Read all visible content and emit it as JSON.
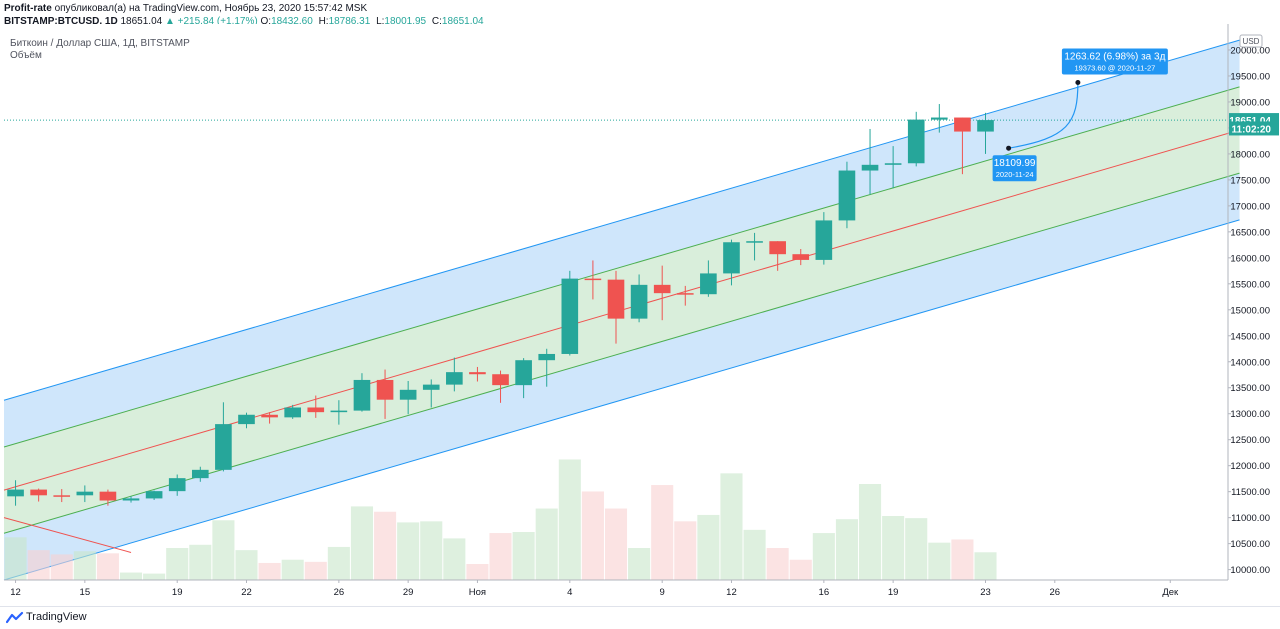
{
  "header": {
    "publisher": "Profit-rate",
    "published_text": "опубликовал(а) на TradingView.com, Ноябрь 23, 2020 15:57:42 MSK",
    "symbol": "BITSTAMP:BTCUSD, 1D",
    "last_price": "18651.04",
    "change": "▲ +215.84 (+1.17%)",
    "ohlc": [
      {
        "label": "O:",
        "value": "18432.60"
      },
      {
        "label": "H:",
        "value": "18786.31"
      },
      {
        "label": "L:",
        "value": "18001.95"
      },
      {
        "label": "C:",
        "value": "18651.04"
      }
    ]
  },
  "legend": {
    "series_title": "Биткоин / Доллар США, 1Д, BITSTAMP",
    "volume_label": "Объём"
  },
  "footer": {
    "brand": "TradingView"
  },
  "colors": {
    "up": "#26a69a",
    "down": "#ef5350",
    "channel_outer_fill": "#cfe6fb",
    "channel_inner_fill": "#d9eedb",
    "channel_outer_line": "#2196f3",
    "channel_inner_line": "#4caf50",
    "median_line": "#ef5350",
    "badge": "#2196f3"
  },
  "chart_data": {
    "type": "candlestick",
    "currency": "USD",
    "y_range": [
      9800,
      20500
    ],
    "y_ticks": [
      10000,
      10500,
      11000,
      11500,
      12000,
      12500,
      13000,
      13500,
      14000,
      14500,
      15000,
      15500,
      16000,
      16500,
      17000,
      17500,
      18000,
      18500,
      19000,
      19500,
      20000
    ],
    "x_range": [
      "2020-10-12",
      "2020-12-04"
    ],
    "x_ticks": [
      {
        "date": "2020-10-12",
        "label": "12"
      },
      {
        "date": "2020-10-15",
        "label": "15"
      },
      {
        "date": "2020-10-19",
        "label": "19"
      },
      {
        "date": "2020-10-22",
        "label": "22"
      },
      {
        "date": "2020-10-26",
        "label": "26"
      },
      {
        "date": "2020-10-29",
        "label": "29"
      },
      {
        "date": "2020-11-01",
        "label": "Ноя"
      },
      {
        "date": "2020-11-05",
        "label": "4"
      },
      {
        "date": "2020-11-09",
        "label": "9"
      },
      {
        "date": "2020-11-12",
        "label": "12"
      },
      {
        "date": "2020-11-16",
        "label": "16"
      },
      {
        "date": "2020-11-19",
        "label": "19"
      },
      {
        "date": "2020-11-23",
        "label": "23"
      },
      {
        "date": "2020-11-26",
        "label": "26"
      },
      {
        "date": "2020-12-01",
        "label": "Дек"
      }
    ],
    "candles": [
      {
        "date": "2020-10-12",
        "o": 11410,
        "h": 11720,
        "l": 11230,
        "c": 11540,
        "v": 40
      },
      {
        "date": "2020-10-13",
        "o": 11540,
        "h": 11560,
        "l": 11310,
        "c": 11430,
        "v": 28
      },
      {
        "date": "2020-10-14",
        "o": 11430,
        "h": 11550,
        "l": 11300,
        "c": 11420,
        "v": 24
      },
      {
        "date": "2020-10-15",
        "o": 11430,
        "h": 11620,
        "l": 11300,
        "c": 11500,
        "v": 27
      },
      {
        "date": "2020-10-16",
        "o": 11500,
        "h": 11540,
        "l": 11230,
        "c": 11330,
        "v": 25
      },
      {
        "date": "2020-10-17",
        "o": 11330,
        "h": 11410,
        "l": 11290,
        "c": 11370,
        "v": 7
      },
      {
        "date": "2020-10-18",
        "o": 11370,
        "h": 11520,
        "l": 11340,
        "c": 11510,
        "v": 6
      },
      {
        "date": "2020-10-19",
        "o": 11510,
        "h": 11830,
        "l": 11420,
        "c": 11760,
        "v": 30
      },
      {
        "date": "2020-10-20",
        "o": 11760,
        "h": 11980,
        "l": 11690,
        "c": 11920,
        "v": 33
      },
      {
        "date": "2020-10-21",
        "o": 11920,
        "h": 13220,
        "l": 11890,
        "c": 12800,
        "v": 56
      },
      {
        "date": "2020-10-22",
        "o": 12800,
        "h": 13020,
        "l": 12720,
        "c": 12980,
        "v": 28
      },
      {
        "date": "2020-10-23",
        "o": 12980,
        "h": 13030,
        "l": 12810,
        "c": 12930,
        "v": 16
      },
      {
        "date": "2020-10-24",
        "o": 12930,
        "h": 13170,
        "l": 12900,
        "c": 13120,
        "v": 19
      },
      {
        "date": "2020-10-25",
        "o": 13120,
        "h": 13350,
        "l": 12920,
        "c": 13030,
        "v": 17
      },
      {
        "date": "2020-10-26",
        "o": 13030,
        "h": 13260,
        "l": 12790,
        "c": 13060,
        "v": 31
      },
      {
        "date": "2020-10-27",
        "o": 13060,
        "h": 13780,
        "l": 13040,
        "c": 13650,
        "v": 69
      },
      {
        "date": "2020-10-28",
        "o": 13650,
        "h": 13850,
        "l": 12900,
        "c": 13270,
        "v": 64
      },
      {
        "date": "2020-10-29",
        "o": 13270,
        "h": 13630,
        "l": 12990,
        "c": 13460,
        "v": 54
      },
      {
        "date": "2020-10-30",
        "o": 13460,
        "h": 13660,
        "l": 13120,
        "c": 13560,
        "v": 55
      },
      {
        "date": "2020-10-31",
        "o": 13560,
        "h": 14080,
        "l": 13430,
        "c": 13800,
        "v": 39
      },
      {
        "date": "2020-11-01",
        "o": 13800,
        "h": 13900,
        "l": 13620,
        "c": 13760,
        "v": 15
      },
      {
        "date": "2020-11-02",
        "o": 13760,
        "h": 13830,
        "l": 13210,
        "c": 13550,
        "v": 44
      },
      {
        "date": "2020-11-03",
        "o": 13550,
        "h": 14070,
        "l": 13300,
        "c": 14030,
        "v": 45
      },
      {
        "date": "2020-11-04",
        "o": 14030,
        "h": 14250,
        "l": 13520,
        "c": 14150,
        "v": 67
      },
      {
        "date": "2020-11-05",
        "o": 14150,
        "h": 15750,
        "l": 14120,
        "c": 15600,
        "v": 113
      },
      {
        "date": "2020-11-06",
        "o": 15600,
        "h": 15950,
        "l": 15200,
        "c": 15580,
        "v": 83
      },
      {
        "date": "2020-11-07",
        "o": 15580,
        "h": 15750,
        "l": 14350,
        "c": 14830,
        "v": 67
      },
      {
        "date": "2020-11-08",
        "o": 14830,
        "h": 15680,
        "l": 14760,
        "c": 15480,
        "v": 30
      },
      {
        "date": "2020-11-09",
        "o": 15480,
        "h": 15850,
        "l": 14800,
        "c": 15320,
        "v": 89
      },
      {
        "date": "2020-11-10",
        "o": 15320,
        "h": 15460,
        "l": 15080,
        "c": 15300,
        "v": 55
      },
      {
        "date": "2020-11-11",
        "o": 15300,
        "h": 15950,
        "l": 15250,
        "c": 15700,
        "v": 61
      },
      {
        "date": "2020-11-12",
        "o": 15700,
        "h": 16350,
        "l": 15470,
        "c": 16300,
        "v": 100
      },
      {
        "date": "2020-11-13",
        "o": 16300,
        "h": 16480,
        "l": 15950,
        "c": 16320,
        "v": 47
      },
      {
        "date": "2020-11-14",
        "o": 16320,
        "h": 16320,
        "l": 15750,
        "c": 16070,
        "v": 30
      },
      {
        "date": "2020-11-15",
        "o": 16070,
        "h": 16170,
        "l": 15860,
        "c": 15960,
        "v": 19
      },
      {
        "date": "2020-11-16",
        "o": 15960,
        "h": 16880,
        "l": 15870,
        "c": 16720,
        "v": 44
      },
      {
        "date": "2020-11-17",
        "o": 16720,
        "h": 17850,
        "l": 16570,
        "c": 17680,
        "v": 57
      },
      {
        "date": "2020-11-18",
        "o": 17680,
        "h": 18480,
        "l": 17220,
        "c": 17790,
        "v": 90
      },
      {
        "date": "2020-11-19",
        "o": 17790,
        "h": 18150,
        "l": 17340,
        "c": 17820,
        "v": 60
      },
      {
        "date": "2020-11-20",
        "o": 17820,
        "h": 18810,
        "l": 17760,
        "c": 18660,
        "v": 58
      },
      {
        "date": "2020-11-21",
        "o": 18660,
        "h": 18960,
        "l": 18410,
        "c": 18700,
        "v": 35
      },
      {
        "date": "2020-11-22",
        "o": 18700,
        "h": 18700,
        "l": 17610,
        "c": 18430,
        "v": 38
      },
      {
        "date": "2020-11-23",
        "o": 18430,
        "h": 18790,
        "l": 18000,
        "c": 18651.04,
        "v": 26
      }
    ],
    "volume_note": "relative volume, scale 0-120 (no axis shown)",
    "regression_channel": {
      "start": {
        "date": "2020-10-12",
        "center": 11530
      },
      "end": {
        "date": "2020-12-04",
        "center": 18460
      },
      "inner_offset": 830,
      "outer_offset": 1730
    },
    "drawn_line": {
      "start": {
        "date": "2020-10-12",
        "price": 11000
      },
      "end": {
        "date": "2020-10-17",
        "price": 10330
      }
    },
    "price_labels": [
      {
        "text": "18651.04",
        "value": 18651.04,
        "color": "#26a69a"
      },
      {
        "text": "11:02:20",
        "value": 18490,
        "color": "#26a69a"
      }
    ],
    "annotations": [
      {
        "id": "point-a",
        "date": "2020-11-24",
        "price": 18109.99,
        "line1": "18109.99",
        "line2": "2020-11-24"
      },
      {
        "id": "point-b",
        "date": "2020-11-27",
        "price": 19373.6,
        "line1": "1263.62 (6.98%) за 3д",
        "line2": "19373.60 @ 2020-11-27"
      }
    ]
  }
}
